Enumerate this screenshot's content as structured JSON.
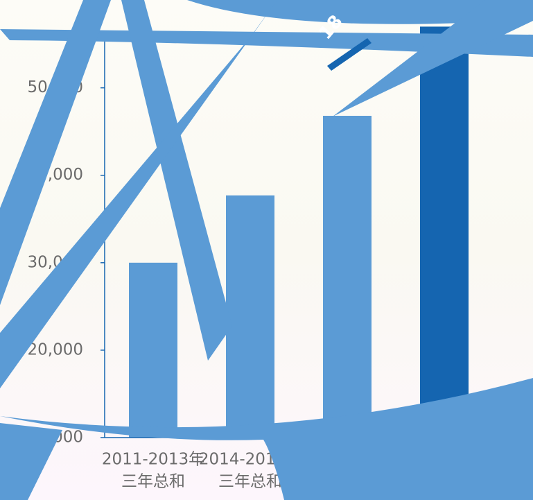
{
  "chart_data": {
    "type": "bar",
    "categories": [
      [
        "2011-2013年",
        "三年总和"
      ],
      [
        "2014-2016年",
        "三年总和"
      ],
      null,
      null
    ],
    "values": [
      30000,
      37700,
      46800,
      57000
    ],
    "colors": [
      "#5b9bd5",
      "#5b9bd5",
      "#5b9bd5",
      "#1565b0"
    ],
    "ylim": [
      10000,
      56000
    ],
    "yticks": [
      {
        "value": 10000,
        "label": "10,000"
      },
      {
        "value": 20000,
        "label": "20,000"
      },
      {
        "value": 30000,
        "label": "30,000"
      },
      {
        "value": 40000,
        "label": "40,000"
      },
      {
        "value": 50000,
        "label": "50,000"
      }
    ],
    "annotation": "18"
  }
}
